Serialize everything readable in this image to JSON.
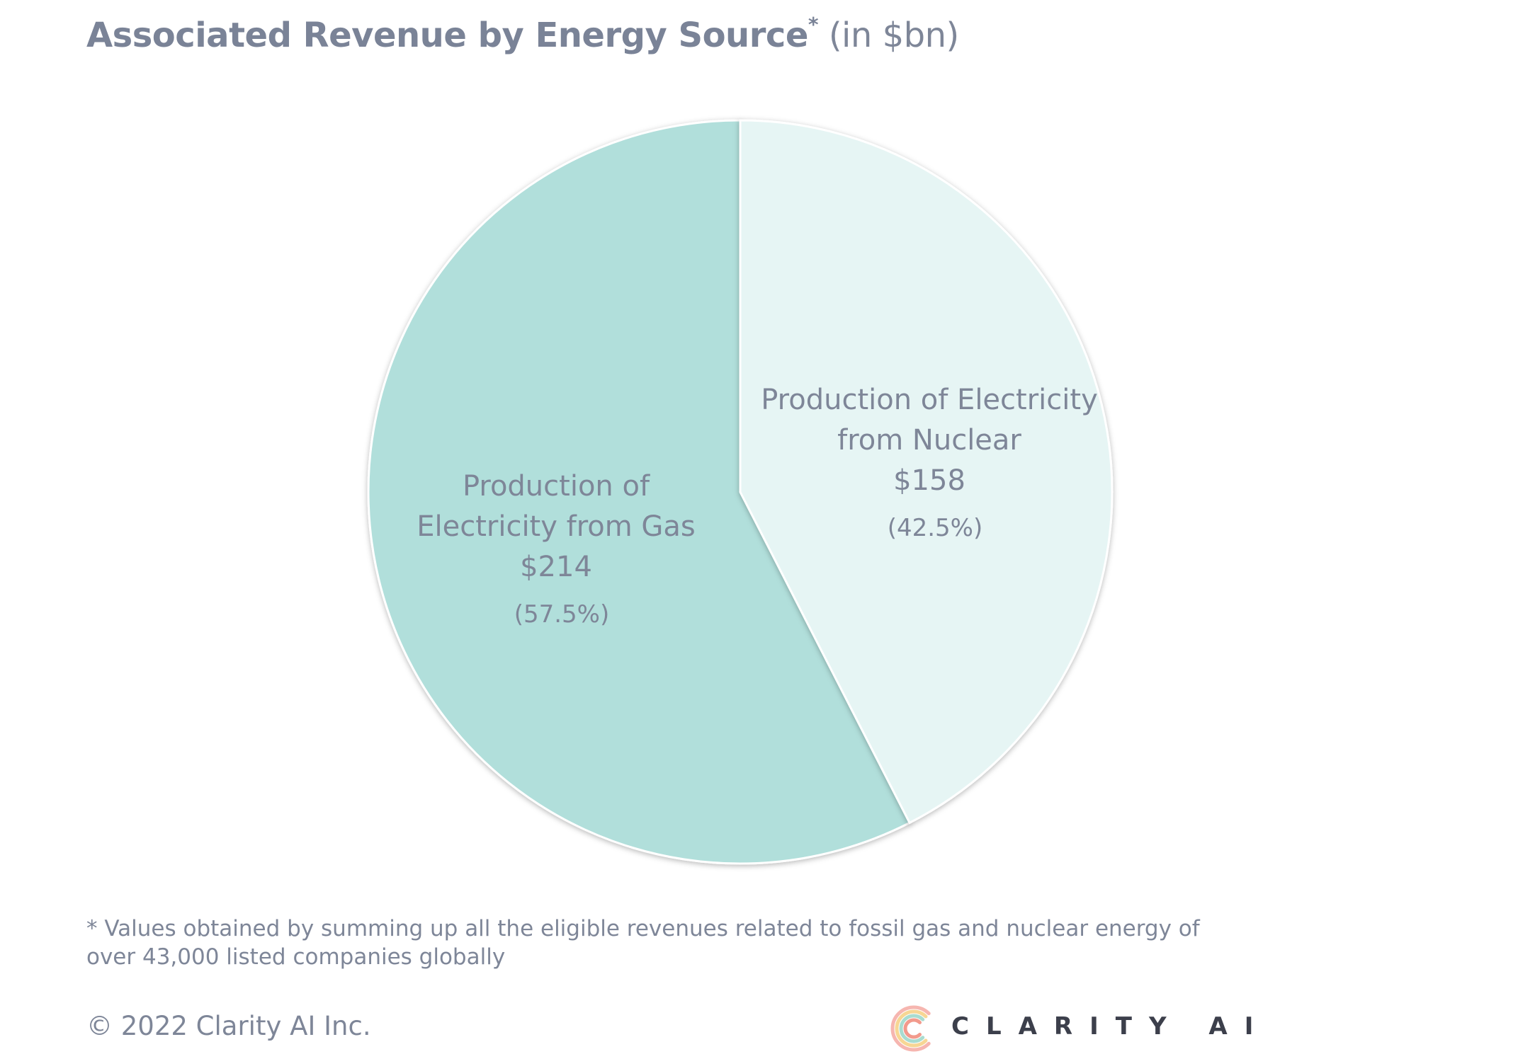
{
  "title": {
    "main": "Associated Revenue by Energy Source",
    "marker": "*",
    "unit": "(in $bn)"
  },
  "chart_data": {
    "type": "pie",
    "title": "Associated Revenue by Energy Source* (in $bn)",
    "slices": [
      {
        "label_lines": [
          "Production of",
          "Electricity from Gas"
        ],
        "value": 214,
        "value_label": "$214",
        "percent": 57.5,
        "percent_label": "(57.5%)",
        "color": "#b1dfdb"
      },
      {
        "label_lines": [
          "Production of Electricity",
          "from Nuclear"
        ],
        "value": 158,
        "value_label": "$158",
        "percent": 42.5,
        "percent_label": "(42.5%)",
        "color": "#e6f5f4"
      }
    ],
    "start_angle": "12 o'clock",
    "direction": "counter-clockwise from top for first slice"
  },
  "footnote": "* Values obtained by summing up all the eligible revenues related to fossil gas and nuclear energy of over 43,000 listed companies globally",
  "copyright": "© 2022 Clarity AI Inc.",
  "logo": {
    "text": "CLARITY AI",
    "icon": "clarity-ai-logo-icon",
    "colors": [
      "#f6b6b0",
      "#f7d694",
      "#a9dcd0",
      "#f29a8c"
    ]
  }
}
